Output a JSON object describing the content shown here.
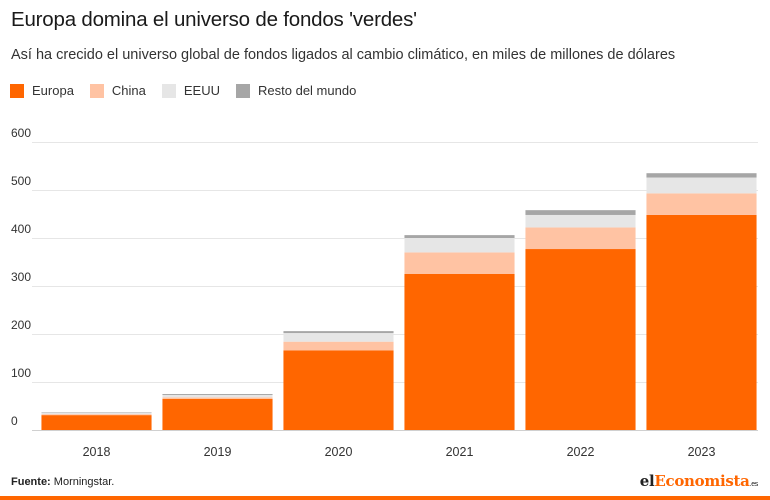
{
  "header": {
    "title": "Europa domina el universo de fondos 'verdes'",
    "subtitle": "Así ha crecido el universo global de fondos ligados al cambio climático, en miles de millones de dólares"
  },
  "colors": {
    "europa": "#ff6600",
    "china": "#ffc3a3",
    "eeuu": "#e6e6e6",
    "resto": "#a6a6a6",
    "grid": "#e6e6e6"
  },
  "chart_data": {
    "type": "bar",
    "stacked": true,
    "categories": [
      "2018",
      "2019",
      "2020",
      "2021",
      "2022",
      "2023"
    ],
    "series": [
      {
        "name": "Europa",
        "color": "#ff6600",
        "values": [
          31,
          65,
          166,
          325,
          377,
          448
        ]
      },
      {
        "name": "China",
        "color": "#ffc3a3",
        "values": [
          2,
          3,
          18,
          45,
          45,
          45
        ]
      },
      {
        "name": "EEUU",
        "color": "#e6e6e6",
        "values": [
          3,
          5,
          18,
          30,
          26,
          33
        ]
      },
      {
        "name": "Resto del mundo",
        "color": "#a6a6a6",
        "values": [
          1,
          2,
          4,
          6,
          10,
          9
        ]
      }
    ],
    "yticks": [
      0,
      100,
      200,
      300,
      400,
      500,
      600
    ],
    "ylim": [
      0,
      600
    ],
    "grid": true,
    "legend": "top-left"
  },
  "footer": {
    "source_label": "Fuente:",
    "source_text": " Morningstar.",
    "brand_prefix": "el",
    "brand_accent": "Economista",
    "brand_suffix": ".es"
  }
}
